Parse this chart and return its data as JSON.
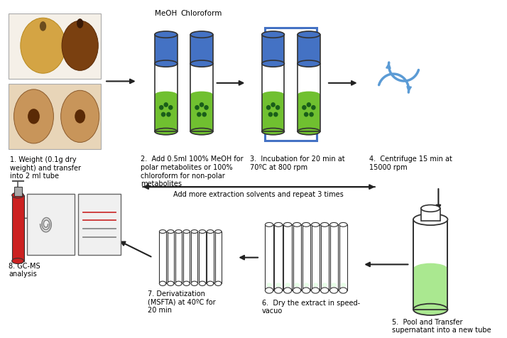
{
  "background_color": "#ffffff",
  "figsize": [
    7.14,
    4.77
  ],
  "dpi": 100,
  "arrow_color": "#222222",
  "box_color": "#4472c4",
  "swirl_color": "#5b9bd5",
  "tube_cap_color": "#4472c4",
  "tube_green": "#70c030",
  "tube_dot_color": "#1a5e1a",
  "step_labels": [
    "1. Weight (0.1g dry\nweight) and transfer\ninto 2 ml tube",
    "2.  Add 0.5ml 100% MeOH for\npolar metabolites or 100%\nchloroform for non-polar\nmetabolites",
    "3.  Incubation for 20 min at\n70ºC at 800 rpm",
    "4.  Centrifuge 15 min at\n15000 rpm",
    "5.  Pool and Transfer\nsupernatant into a new tube",
    "6.  Dry the extract in speed-\nvacuo",
    "7. Derivatization\n(MSFTA) at 40ºC for\n20 min",
    "8. GC-MS\nanalysis"
  ],
  "meoh_label": "MeOH",
  "chloroform_label": "Chloroform",
  "repeat_text": "Add more extraction solvents and repeat 3 times",
  "label_fontsize": 7,
  "small_fontsize": 7.5
}
